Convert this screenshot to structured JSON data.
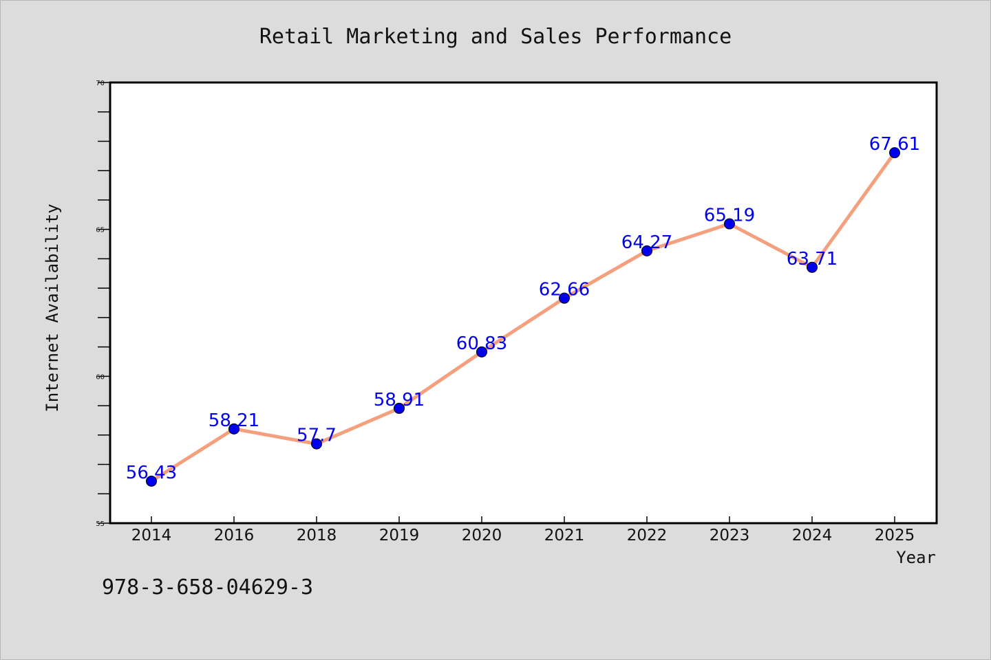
{
  "chart_data": {
    "type": "line",
    "title": "Retail Marketing and Sales Performance",
    "xlabel": "Year",
    "ylabel": "Internet Availability",
    "categories": [
      "2014",
      "2016",
      "2018",
      "2019",
      "2020",
      "2021",
      "2022",
      "2023",
      "2024",
      "2025"
    ],
    "series": [
      {
        "values": [
          56.43,
          58.21,
          57.7,
          58.91,
          60.83,
          62.66,
          64.27,
          65.19,
          63.71,
          67.61
        ],
        "labels": [
          "56.43",
          "58.21",
          "57.7",
          "58.91",
          "60.83",
          "62.66",
          "64.27",
          "65.19",
          "63.71",
          "67.61"
        ],
        "line_color": "#f4a07e",
        "marker_color": "#0000ee"
      }
    ],
    "ylim": [
      55,
      70
    ],
    "yticks": [
      55,
      60,
      65,
      70
    ],
    "grid": false,
    "legend": "none"
  },
  "footer_text": "978-3-658-04629-3"
}
